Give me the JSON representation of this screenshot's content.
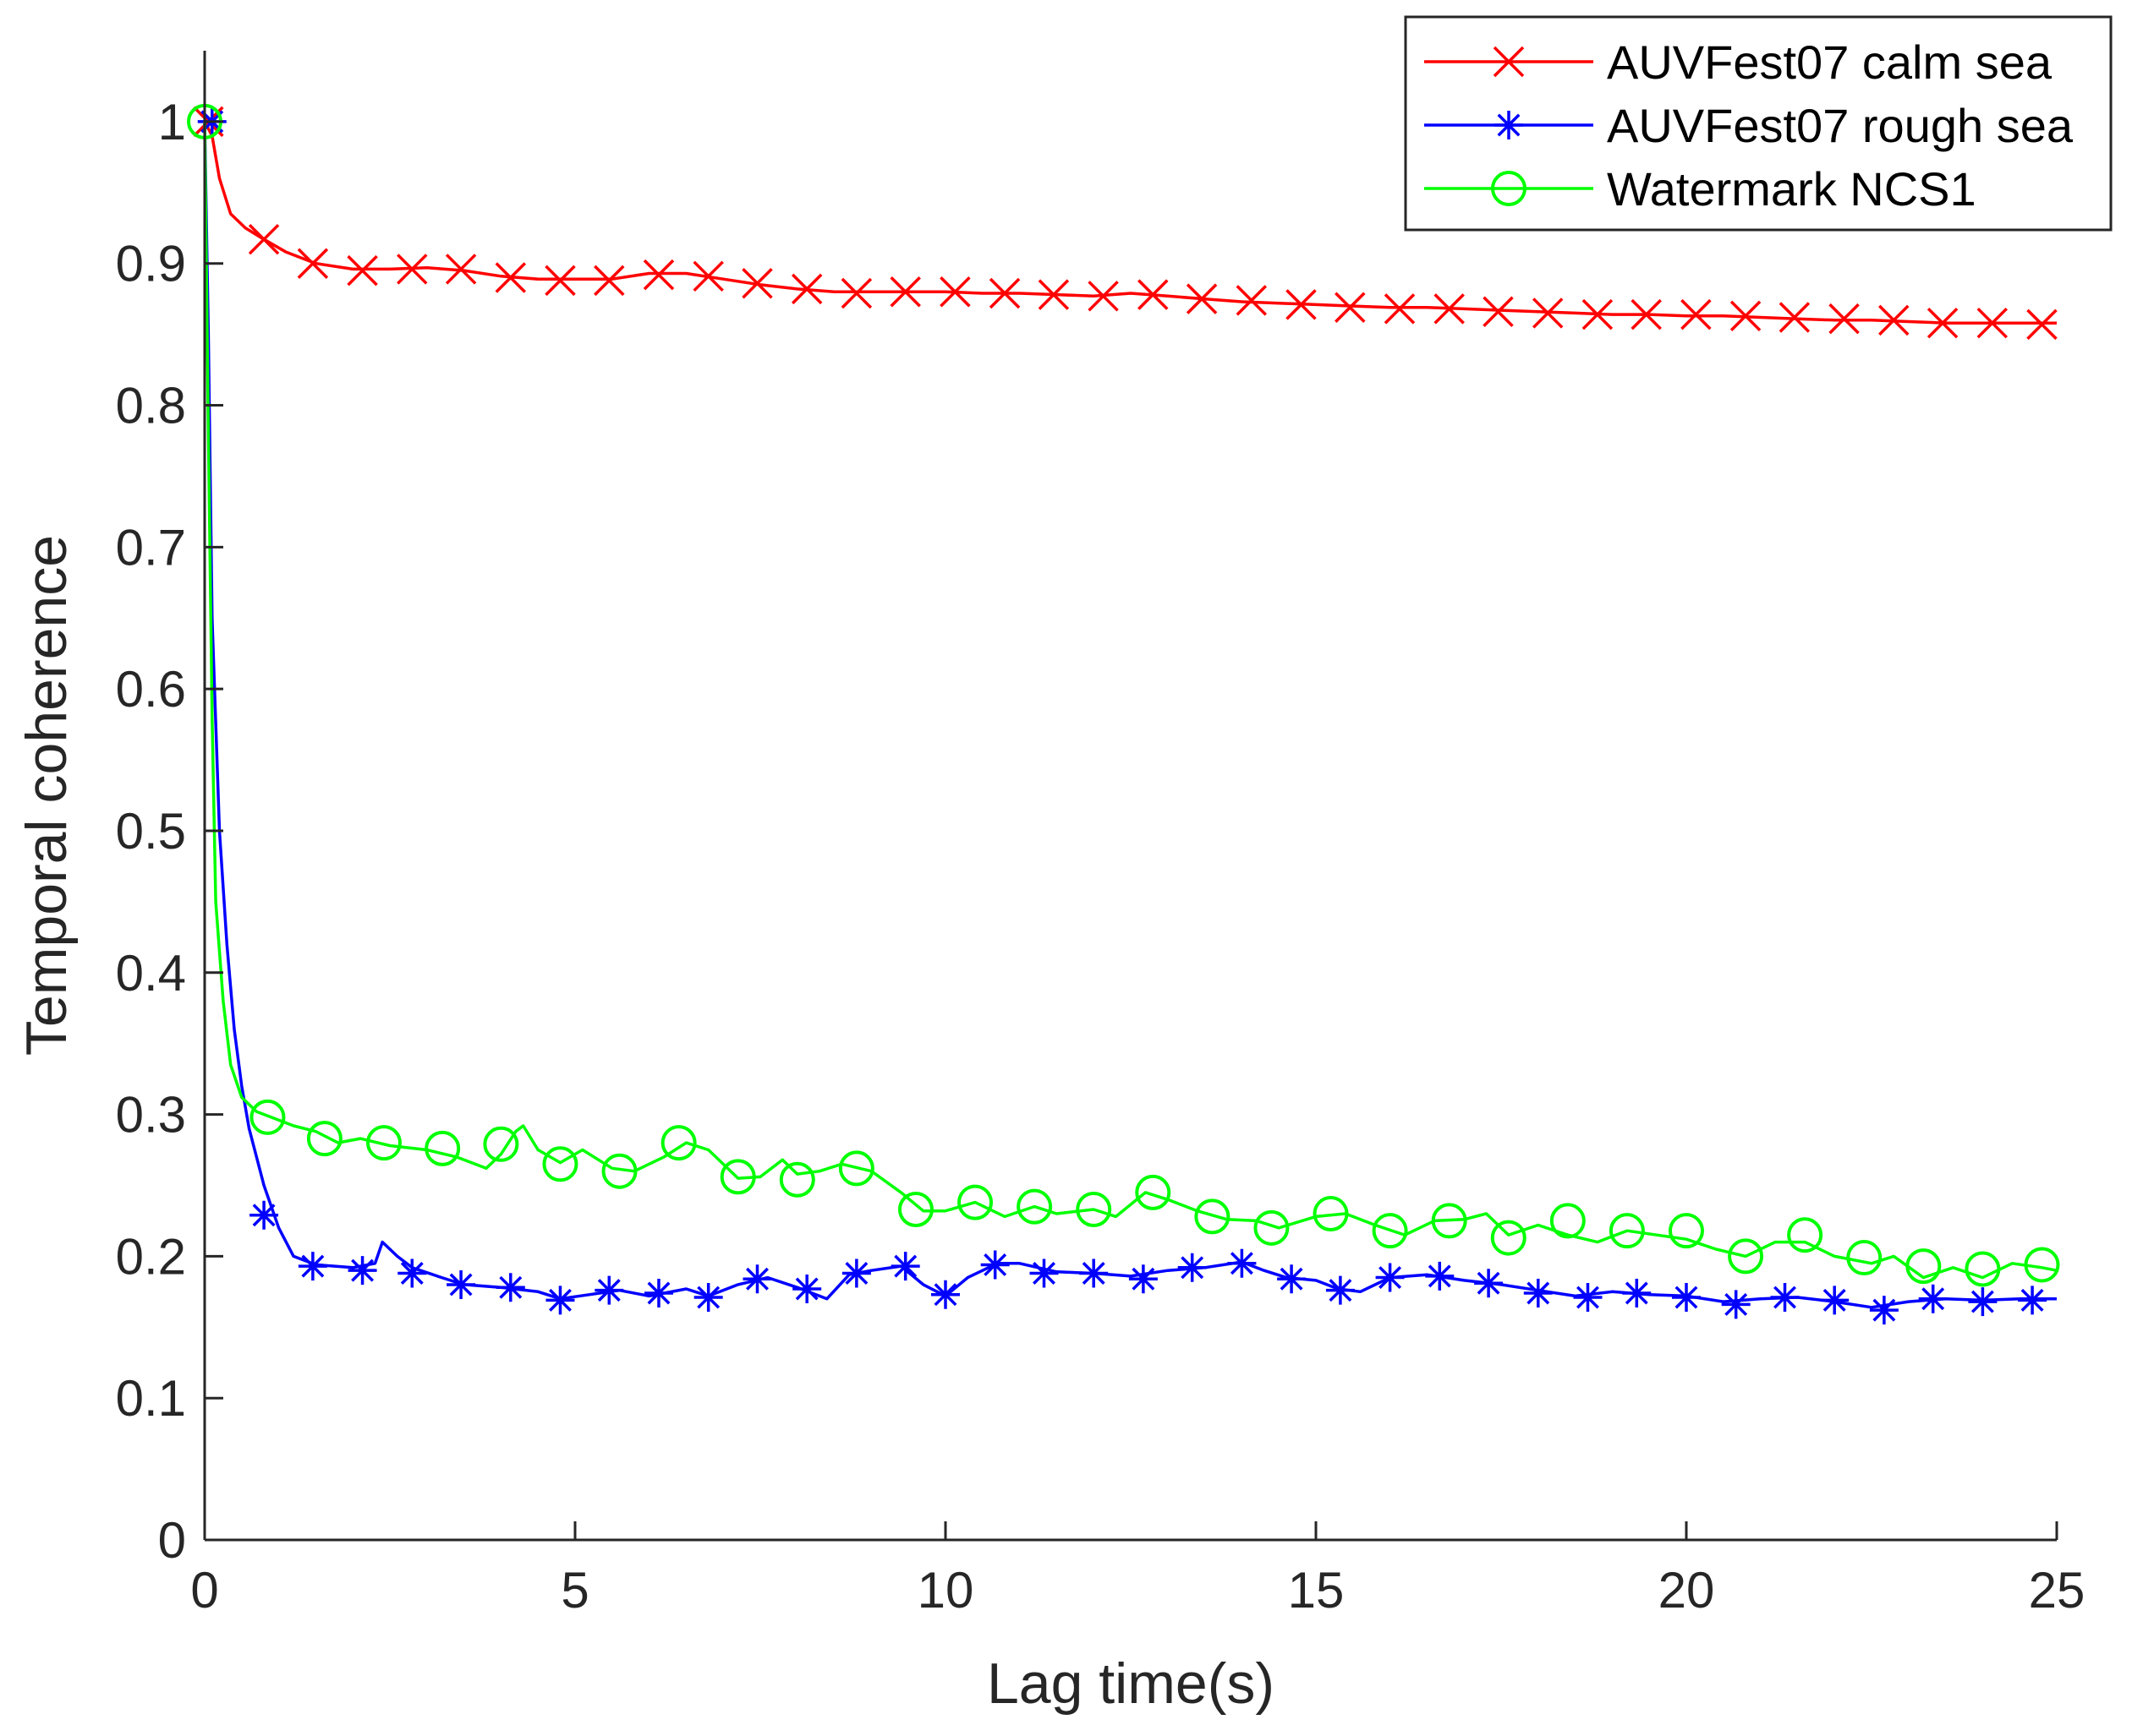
{
  "chart_data": {
    "type": "line",
    "title": "",
    "xlabel": "Lag time(s)",
    "ylabel": "Temporal coherence",
    "xlim": [
      0,
      25
    ],
    "ylim": [
      0,
      1.05
    ],
    "xticks": [
      0,
      5,
      10,
      15,
      20,
      25
    ],
    "yticks": [
      0,
      0.1,
      0.2,
      0.3,
      0.4,
      0.5,
      0.6,
      0.7,
      0.8,
      0.9,
      1
    ],
    "ytick_labels": [
      "0",
      "0.1",
      "0.2",
      "0.3",
      "0.4",
      "0.5",
      "0.6",
      "0.7",
      "0.8",
      "0.9",
      "1"
    ],
    "grid": false,
    "legend_position": "top-right",
    "series": [
      {
        "name": "AUVFest07 calm sea",
        "color": "#ff0000",
        "marker": "x",
        "line": [
          [
            0,
            1
          ],
          [
            0.1,
            0.99
          ],
          [
            0.2,
            0.96
          ],
          [
            0.35,
            0.935
          ],
          [
            0.55,
            0.925
          ],
          [
            0.8,
            0.917
          ],
          [
            1.1,
            0.908
          ],
          [
            1.5,
            0.9
          ],
          [
            2.0,
            0.896
          ],
          [
            2.5,
            0.896
          ],
          [
            3.0,
            0.897
          ],
          [
            3.5,
            0.895
          ],
          [
            4.0,
            0.891
          ],
          [
            4.5,
            0.889
          ],
          [
            5.0,
            0.889
          ],
          [
            5.5,
            0.889
          ],
          [
            6.0,
            0.893
          ],
          [
            6.5,
            0.893
          ],
          [
            7.0,
            0.889
          ],
          [
            7.5,
            0.885
          ],
          [
            8.0,
            0.882
          ],
          [
            8.5,
            0.88
          ],
          [
            9.0,
            0.88
          ],
          [
            9.5,
            0.88
          ],
          [
            10.0,
            0.88
          ],
          [
            10.5,
            0.879
          ],
          [
            11.0,
            0.879
          ],
          [
            11.5,
            0.878
          ],
          [
            12.0,
            0.877
          ],
          [
            12.5,
            0.879
          ],
          [
            13.0,
            0.877
          ],
          [
            13.5,
            0.875
          ],
          [
            14.0,
            0.873
          ],
          [
            14.5,
            0.872
          ],
          [
            15.0,
            0.871
          ],
          [
            15.5,
            0.87
          ],
          [
            16.0,
            0.869
          ],
          [
            16.5,
            0.869
          ],
          [
            17.0,
            0.868
          ],
          [
            17.5,
            0.867
          ],
          [
            18.0,
            0.866
          ],
          [
            18.5,
            0.865
          ],
          [
            19.0,
            0.864
          ],
          [
            19.5,
            0.864
          ],
          [
            20.0,
            0.863
          ],
          [
            20.5,
            0.863
          ],
          [
            21.0,
            0.862
          ],
          [
            21.5,
            0.861
          ],
          [
            22.0,
            0.86
          ],
          [
            22.5,
            0.86
          ],
          [
            23.0,
            0.859
          ],
          [
            23.5,
            0.858
          ],
          [
            24.0,
            0.858
          ],
          [
            24.5,
            0.858
          ],
          [
            25.0,
            0.858
          ]
        ],
        "markers": [
          [
            0.05,
            1
          ],
          [
            0.8,
            0.917
          ],
          [
            1.46,
            0.9
          ],
          [
            2.13,
            0.895
          ],
          [
            2.8,
            0.896
          ],
          [
            3.46,
            0.896
          ],
          [
            4.13,
            0.89
          ],
          [
            4.8,
            0.888
          ],
          [
            5.46,
            0.888
          ],
          [
            6.13,
            0.892
          ],
          [
            6.8,
            0.891
          ],
          [
            7.46,
            0.886
          ],
          [
            8.13,
            0.882
          ],
          [
            8.8,
            0.879
          ],
          [
            9.46,
            0.88
          ],
          [
            10.13,
            0.88
          ],
          [
            10.8,
            0.879
          ],
          [
            11.46,
            0.878
          ],
          [
            12.13,
            0.877
          ],
          [
            12.8,
            0.878
          ],
          [
            13.46,
            0.875
          ],
          [
            14.13,
            0.874
          ],
          [
            14.8,
            0.871
          ],
          [
            15.46,
            0.869
          ],
          [
            16.13,
            0.868
          ],
          [
            16.8,
            0.868
          ],
          [
            17.46,
            0.866
          ],
          [
            18.13,
            0.865
          ],
          [
            18.8,
            0.864
          ],
          [
            19.46,
            0.864
          ],
          [
            20.13,
            0.864
          ],
          [
            20.8,
            0.863
          ],
          [
            21.46,
            0.862
          ],
          [
            22.13,
            0.861
          ],
          [
            22.8,
            0.86
          ],
          [
            23.46,
            0.858
          ],
          [
            24.13,
            0.858
          ],
          [
            24.8,
            0.857
          ]
        ]
      },
      {
        "name": "AUVFest07 rough sea",
        "color": "#0000ff",
        "marker": "*",
        "line": [
          [
            0,
            1
          ],
          [
            0.05,
            0.85
          ],
          [
            0.1,
            0.65
          ],
          [
            0.2,
            0.5
          ],
          [
            0.3,
            0.42
          ],
          [
            0.4,
            0.36
          ],
          [
            0.5,
            0.32
          ],
          [
            0.6,
            0.29
          ],
          [
            0.8,
            0.25
          ],
          [
            1.0,
            0.22
          ],
          [
            1.2,
            0.2
          ],
          [
            1.5,
            0.194
          ],
          [
            2.0,
            0.192
          ],
          [
            2.3,
            0.195
          ],
          [
            2.4,
            0.21
          ],
          [
            2.6,
            0.2
          ],
          [
            2.8,
            0.192
          ],
          [
            3.2,
            0.185
          ],
          [
            3.5,
            0.18
          ],
          [
            4.0,
            0.178
          ],
          [
            4.5,
            0.175
          ],
          [
            4.8,
            0.17
          ],
          [
            5.2,
            0.173
          ],
          [
            5.6,
            0.176
          ],
          [
            6.0,
            0.172
          ],
          [
            6.5,
            0.177
          ],
          [
            6.8,
            0.172
          ],
          [
            7.2,
            0.18
          ],
          [
            7.6,
            0.185
          ],
          [
            8.0,
            0.178
          ],
          [
            8.4,
            0.17
          ],
          [
            8.7,
            0.187
          ],
          [
            9.0,
            0.19
          ],
          [
            9.4,
            0.193
          ],
          [
            9.7,
            0.18
          ],
          [
            10.0,
            0.172
          ],
          [
            10.3,
            0.185
          ],
          [
            10.7,
            0.195
          ],
          [
            11.0,
            0.195
          ],
          [
            11.5,
            0.189
          ],
          [
            12.0,
            0.188
          ],
          [
            12.5,
            0.186
          ],
          [
            13.0,
            0.19
          ],
          [
            13.5,
            0.192
          ],
          [
            14.0,
            0.196
          ],
          [
            14.3,
            0.19
          ],
          [
            14.6,
            0.185
          ],
          [
            15.0,
            0.183
          ],
          [
            15.3,
            0.177
          ],
          [
            15.6,
            0.175
          ],
          [
            16.0,
            0.185
          ],
          [
            16.5,
            0.187
          ],
          [
            17.0,
            0.183
          ],
          [
            17.5,
            0.18
          ],
          [
            18.0,
            0.176
          ],
          [
            18.5,
            0.172
          ],
          [
            19.0,
            0.175
          ],
          [
            19.5,
            0.173
          ],
          [
            20.0,
            0.172
          ],
          [
            20.5,
            0.168
          ],
          [
            21.0,
            0.17
          ],
          [
            21.5,
            0.171
          ],
          [
            22.0,
            0.168
          ],
          [
            22.5,
            0.164
          ],
          [
            23.0,
            0.168
          ],
          [
            23.5,
            0.17
          ],
          [
            24.0,
            0.169
          ],
          [
            24.5,
            0.17
          ],
          [
            25.0,
            0.17
          ]
        ],
        "markers": [
          [
            0.1,
            1
          ],
          [
            0.8,
            0.229
          ],
          [
            1.46,
            0.193
          ],
          [
            2.13,
            0.19
          ],
          [
            2.8,
            0.188
          ],
          [
            3.46,
            0.18
          ],
          [
            4.13,
            0.178
          ],
          [
            4.8,
            0.169
          ],
          [
            5.46,
            0.176
          ],
          [
            6.13,
            0.174
          ],
          [
            6.8,
            0.171
          ],
          [
            7.46,
            0.184
          ],
          [
            8.13,
            0.177
          ],
          [
            8.8,
            0.188
          ],
          [
            9.46,
            0.193
          ],
          [
            10.0,
            0.173
          ],
          [
            10.67,
            0.194
          ],
          [
            11.33,
            0.188
          ],
          [
            12.0,
            0.188
          ],
          [
            12.67,
            0.184
          ],
          [
            13.33,
            0.192
          ],
          [
            14.0,
            0.195
          ],
          [
            14.67,
            0.184
          ],
          [
            15.33,
            0.176
          ],
          [
            16.0,
            0.185
          ],
          [
            16.67,
            0.186
          ],
          [
            17.33,
            0.181
          ],
          [
            18.0,
            0.174
          ],
          [
            18.67,
            0.171
          ],
          [
            19.33,
            0.174
          ],
          [
            20.0,
            0.171
          ],
          [
            20.67,
            0.166
          ],
          [
            21.33,
            0.171
          ],
          [
            22.0,
            0.169
          ],
          [
            22.67,
            0.162
          ],
          [
            23.33,
            0.17
          ],
          [
            24.0,
            0.168
          ],
          [
            24.67,
            0.169
          ]
        ]
      },
      {
        "name": "Watermark NCS1",
        "color": "#00ff00",
        "marker": "o",
        "line": [
          [
            0,
            1
          ],
          [
            0.05,
            0.78
          ],
          [
            0.1,
            0.58
          ],
          [
            0.15,
            0.45
          ],
          [
            0.25,
            0.38
          ],
          [
            0.35,
            0.335
          ],
          [
            0.5,
            0.312
          ],
          [
            0.7,
            0.302
          ],
          [
            0.9,
            0.298
          ],
          [
            1.2,
            0.292
          ],
          [
            1.5,
            0.288
          ],
          [
            1.8,
            0.28
          ],
          [
            2.1,
            0.283
          ],
          [
            2.5,
            0.278
          ],
          [
            3.0,
            0.275
          ],
          [
            3.4,
            0.27
          ],
          [
            3.8,
            0.262
          ],
          [
            4.0,
            0.272
          ],
          [
            4.2,
            0.288
          ],
          [
            4.3,
            0.292
          ],
          [
            4.5,
            0.275
          ],
          [
            4.8,
            0.266
          ],
          [
            5.1,
            0.275
          ],
          [
            5.5,
            0.262
          ],
          [
            5.8,
            0.26
          ],
          [
            6.2,
            0.27
          ],
          [
            6.5,
            0.28
          ],
          [
            6.8,
            0.275
          ],
          [
            7.2,
            0.255
          ],
          [
            7.5,
            0.256
          ],
          [
            7.8,
            0.268
          ],
          [
            8.0,
            0.258
          ],
          [
            8.3,
            0.26
          ],
          [
            8.6,
            0.265
          ],
          [
            9.0,
            0.26
          ],
          [
            9.4,
            0.245
          ],
          [
            9.7,
            0.232
          ],
          [
            10.0,
            0.232
          ],
          [
            10.4,
            0.238
          ],
          [
            10.8,
            0.228
          ],
          [
            11.2,
            0.235
          ],
          [
            11.5,
            0.23
          ],
          [
            12.0,
            0.233
          ],
          [
            12.3,
            0.228
          ],
          [
            12.7,
            0.245
          ],
          [
            13.0,
            0.24
          ],
          [
            13.4,
            0.232
          ],
          [
            13.8,
            0.226
          ],
          [
            14.2,
            0.225
          ],
          [
            14.5,
            0.22
          ],
          [
            15.0,
            0.228
          ],
          [
            15.4,
            0.23
          ],
          [
            15.8,
            0.222
          ],
          [
            16.2,
            0.215
          ],
          [
            16.6,
            0.225
          ],
          [
            17.0,
            0.226
          ],
          [
            17.3,
            0.23
          ],
          [
            17.6,
            0.215
          ],
          [
            18.0,
            0.222
          ],
          [
            18.4,
            0.215
          ],
          [
            18.8,
            0.21
          ],
          [
            19.2,
            0.218
          ],
          [
            19.6,
            0.215
          ],
          [
            20.0,
            0.212
          ],
          [
            20.4,
            0.205
          ],
          [
            20.8,
            0.2
          ],
          [
            21.2,
            0.21
          ],
          [
            21.6,
            0.21
          ],
          [
            22.0,
            0.2
          ],
          [
            22.5,
            0.195
          ],
          [
            22.8,
            0.2
          ],
          [
            23.2,
            0.185
          ],
          [
            23.6,
            0.192
          ],
          [
            24.0,
            0.185
          ],
          [
            24.4,
            0.195
          ],
          [
            24.8,
            0.192
          ],
          [
            25.0,
            0.19
          ]
        ],
        "markers": [
          [
            0.0,
            1
          ],
          [
            0.85,
            0.298
          ],
          [
            1.62,
            0.283
          ],
          [
            2.42,
            0.28
          ],
          [
            3.21,
            0.276
          ],
          [
            4.0,
            0.279
          ],
          [
            4.8,
            0.265
          ],
          [
            5.6,
            0.26
          ],
          [
            6.4,
            0.28
          ],
          [
            7.2,
            0.256
          ],
          [
            8.0,
            0.254
          ],
          [
            8.8,
            0.262
          ],
          [
            9.6,
            0.233
          ],
          [
            10.4,
            0.238
          ],
          [
            11.2,
            0.235
          ],
          [
            12.0,
            0.233
          ],
          [
            12.8,
            0.245
          ],
          [
            13.6,
            0.228
          ],
          [
            14.4,
            0.22
          ],
          [
            15.2,
            0.23
          ],
          [
            16.0,
            0.218
          ],
          [
            16.8,
            0.225
          ],
          [
            17.6,
            0.213
          ],
          [
            18.4,
            0.225
          ],
          [
            19.2,
            0.218
          ],
          [
            20.0,
            0.218
          ],
          [
            20.8,
            0.2
          ],
          [
            21.6,
            0.215
          ],
          [
            22.4,
            0.199
          ],
          [
            23.2,
            0.193
          ],
          [
            24.0,
            0.191
          ],
          [
            24.8,
            0.194
          ]
        ]
      }
    ]
  }
}
